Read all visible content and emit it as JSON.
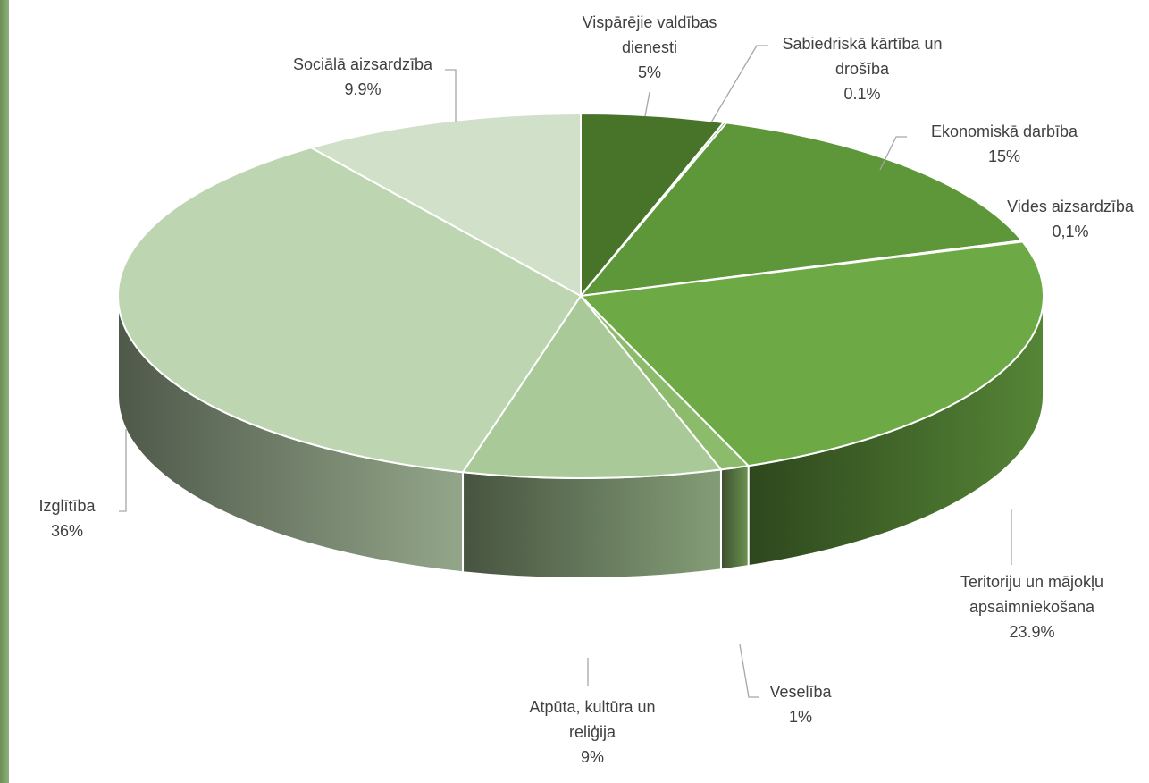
{
  "chart_data": {
    "type": "pie",
    "style": "3d",
    "title": "",
    "slices": [
      {
        "label_lines": [
          "Vispārējie valdības",
          "dienesti"
        ],
        "value_label": "5%",
        "value": 5.0,
        "color": "#48742a"
      },
      {
        "label_lines": [
          "Sabiedriskā kārtība un",
          "drošība"
        ],
        "value_label": "0.1%",
        "value": 0.1,
        "color": "#55852f"
      },
      {
        "label_lines": [
          "Ekonomiskā darbība"
        ],
        "value_label": "15%",
        "value": 15.0,
        "color": "#5e963a"
      },
      {
        "label_lines": [
          "Vides aizsardzība"
        ],
        "value_label": "0,1%",
        "value": 0.1,
        "color": "#65a040"
      },
      {
        "label_lines": [
          "Teritoriju un mājokļu",
          "apsaimniekošana"
        ],
        "value_label": "23.9%",
        "value": 23.9,
        "color": "#6daa45"
      },
      {
        "label_lines": [
          "Veselība"
        ],
        "value_label": "1%",
        "value": 1.0,
        "color": "#8cbb6b"
      },
      {
        "label_lines": [
          "Atpūta, kultūra un",
          "reliģija"
        ],
        "value_label": "9%",
        "value": 9.0,
        "color": "#a9c998"
      },
      {
        "label_lines": [
          "Izglītība"
        ],
        "value_label": "36%",
        "value": 36.0,
        "color": "#bdd5b1"
      },
      {
        "label_lines": [
          "Sociālā aizsardzība"
        ],
        "value_label": "9.9%",
        "value": 9.9,
        "color": "#d1e0c8"
      }
    ]
  }
}
